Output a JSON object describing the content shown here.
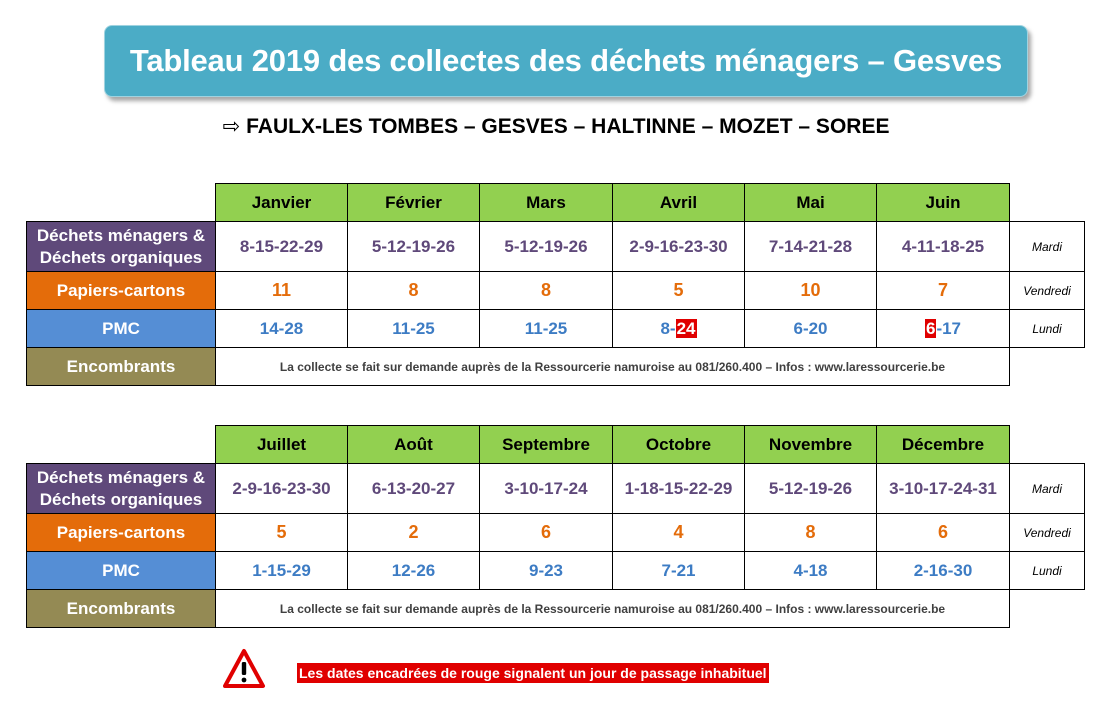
{
  "title": "Tableau 2019 des collectes des déchets ménagers – Gesves",
  "subtitle": {
    "arrow": "⇨",
    "text": "FAULX-LES TOMBES – GESVES – HALTINNE – MOZET – SOREE"
  },
  "categories": {
    "menagers_line1": "Déchets ménagers &",
    "menagers_line2": "Déchets organiques",
    "papiers": "Papiers-cartons",
    "pmc": "PMC",
    "encombrants": "Encombrants"
  },
  "days": {
    "menagers": "Mardi",
    "papiers": "Vendredi",
    "pmc": "Lundi"
  },
  "encombrants_text": "La collecte se fait sur demande auprès de la Ressourcerie namuroise au 081/260.400 – Infos : www.laressourcerie.be",
  "table1": {
    "months": [
      "Janvier",
      "Février",
      "Mars",
      "Avril",
      "Mai",
      "Juin"
    ],
    "menagers": [
      "8-15-22-29",
      "5-12-19-26",
      "5-12-19-26",
      "2-9-16-23-30",
      "7-14-21-28",
      "4-11-18-25"
    ],
    "papiers": [
      "11",
      "8",
      "8",
      "5",
      "10",
      "7"
    ],
    "pmc": [
      "14-28",
      "11-25",
      "11-25",
      "8-24",
      "6-20",
      "6-17"
    ],
    "pmc_avril_parts": {
      "before": "8-",
      "marked": "24",
      "after": ""
    },
    "pmc_juin_parts": {
      "before": "",
      "marked": "6",
      "after": "-17"
    }
  },
  "table2": {
    "months": [
      "Juillet",
      "Août",
      "Septembre",
      "Octobre",
      "Novembre",
      "Décembre"
    ],
    "menagers": [
      "2-9-16-23-30",
      "6-13-20-27",
      "3-10-17-24",
      "1-18-15-22-29",
      "5-12-19-26",
      "3-10-17-24-31"
    ],
    "papiers": [
      "5",
      "2",
      "6",
      "4",
      "8",
      "6"
    ],
    "pmc": [
      "1-15-29",
      "12-26",
      "9-23",
      "7-21",
      "4-18",
      "2-16-30"
    ]
  },
  "notice": "Les dates encadrées de rouge signalent un jour de passage inhabituel",
  "colors": {
    "title_bg": "#4bacc6",
    "month_bg": "#92d050",
    "menagers": "#5f497a",
    "papiers": "#e46c0a",
    "pmc": "#558ed5",
    "encombrants": "#948a54",
    "alert_red": "#e00000"
  },
  "icons": {
    "warning": "warning-triangle-icon"
  }
}
